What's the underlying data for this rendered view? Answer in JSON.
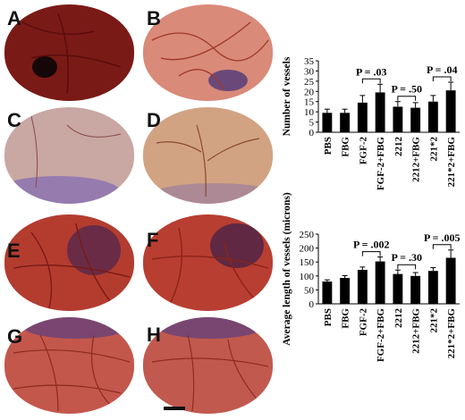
{
  "panels": [
    {
      "letter": "A",
      "bg": "#7a1a16",
      "tone": "#b03a2e"
    },
    {
      "letter": "B",
      "bg": "#d98a78",
      "tone": "#e8b09f"
    },
    {
      "letter": "C",
      "bg": "#c9a7a2",
      "tone": "#dcc3bd"
    },
    {
      "letter": "D",
      "bg": "#d2a383",
      "tone": "#e4c3a4"
    },
    {
      "letter": "E",
      "bg": "#b33c2f",
      "tone": "#d46b56"
    },
    {
      "letter": "F",
      "bg": "#b83e31",
      "tone": "#dc7a63"
    },
    {
      "letter": "G",
      "bg": "#c4574c",
      "tone": "#e08e80"
    },
    {
      "letter": "H",
      "bg": "#c1594f",
      "tone": "#e39a8c"
    }
  ],
  "chart_data": [
    {
      "type": "bar",
      "ylabel": "Number of vessels",
      "categories": [
        "PBS",
        "FBG",
        "FGF-2",
        "FGF-2+FBG",
        "2212",
        "2212+FBG",
        "221*2",
        "221*2+FBG"
      ],
      "values": [
        9.5,
        9.5,
        14.5,
        19.5,
        12.5,
        12.0,
        15.0,
        20.5
      ],
      "errors": [
        1.8,
        1.8,
        3.5,
        4.0,
        2.5,
        2.5,
        3.0,
        4.0
      ],
      "ylim": [
        0,
        35
      ],
      "yticks": [
        0,
        5,
        10,
        15,
        20,
        25,
        30,
        35
      ],
      "annotations": [
        {
          "text": "P = .03",
          "between": [
            2,
            3
          ]
        },
        {
          "text": "P = .50",
          "between": [
            4,
            5
          ]
        },
        {
          "text": "P = .04",
          "between": [
            6,
            7
          ]
        }
      ],
      "bar_color": "#000000"
    },
    {
      "type": "bar",
      "ylabel": "Average length of vessels (microns)",
      "categories": [
        "PBS",
        "FBG",
        "FGF-2",
        "FGF-2+FBG",
        "2212",
        "2212+FBG",
        "221*2",
        "221*2+FBG"
      ],
      "values": [
        80,
        93,
        122,
        152,
        107,
        100,
        118,
        165
      ],
      "errors": [
        6,
        8,
        10,
        16,
        14,
        12,
        12,
        28
      ],
      "ylim": [
        0,
        250
      ],
      "yticks": [
        0,
        50,
        100,
        150,
        200,
        250
      ],
      "annotations": [
        {
          "text": "P = .002",
          "between": [
            2,
            3
          ]
        },
        {
          "text": "P = .30",
          "between": [
            4,
            5
          ]
        },
        {
          "text": "P = .005",
          "between": [
            6,
            7
          ]
        }
      ],
      "bar_color": "#000000"
    }
  ]
}
